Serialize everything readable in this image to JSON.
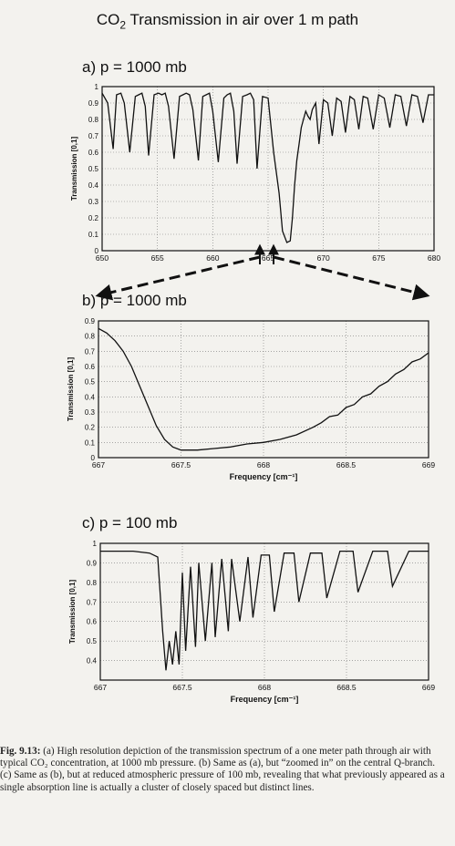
{
  "title_prefix": "CO",
  "title_sub": "2",
  "title_suffix": " Transmission in air over 1 m path",
  "caption": {
    "label": "Fig. 9.13:",
    "text": " (a) High resolution depiction of the transmission spectrum of a one meter path through air with typical CO₂ concentration, at 1000 mb pressure. (b) Same as (a), but “zoomed in” on the central Q-branch. (c) Same as (b), but at reduced atmospheric pressure of 100 mb, revealing that what previously appeared as a single absorption line is actually a cluster of closely spaced but distinct lines."
  },
  "chart_data": [
    {
      "type": "line",
      "panel_label": "a) p = 1000 mb",
      "xlabel": "",
      "ylabel": "Transmission [0,1]",
      "xlim": [
        650,
        680
      ],
      "ylim": [
        0,
        1
      ],
      "xticks": [
        650,
        655,
        660,
        665,
        670,
        675,
        680
      ],
      "xtick_labels": [
        "650",
        "655",
        "660",
        "665",
        "670",
        "675",
        "680"
      ],
      "yticks": [
        0,
        0.1,
        0.2,
        0.3,
        0.4,
        0.5,
        0.6,
        0.7,
        0.8,
        0.9,
        1
      ],
      "ytick_labels": [
        "0",
        "0.1",
        "0.2",
        "0.3",
        "0.4",
        "0.5",
        "0.6",
        "0.7",
        "0.8",
        "0.9",
        "1"
      ],
      "series": [
        {
          "x": [
            650,
            650.5,
            651,
            651.3,
            651.7,
            652,
            652.5,
            653,
            653.3,
            653.6,
            653.9,
            654.2,
            654.7,
            655.1,
            655.4,
            655.7,
            656,
            656.5,
            657,
            657.3,
            657.6,
            657.9,
            658.2,
            658.7,
            659.1,
            659.4,
            659.7,
            660,
            660.5,
            661,
            661.3,
            661.6,
            661.9,
            662.2,
            662.7,
            663.1,
            663.4,
            663.7,
            664,
            664.5,
            665,
            665.5,
            666,
            666.3,
            666.7,
            667,
            667.2,
            667.4,
            667.6,
            667.8,
            668,
            668.2,
            668.4,
            668.6,
            668.8,
            669,
            669.3,
            669.6,
            670,
            670.4,
            670.8,
            671.2,
            671.6,
            672,
            672.4,
            672.8,
            673.2,
            673.6,
            674,
            674.5,
            675,
            675.5,
            676,
            676.5,
            677,
            677.5,
            678,
            678.5,
            679,
            679.5,
            680
          ],
          "y": [
            0.96,
            0.9,
            0.62,
            0.95,
            0.96,
            0.9,
            0.6,
            0.94,
            0.95,
            0.96,
            0.88,
            0.58,
            0.95,
            0.96,
            0.95,
            0.96,
            0.88,
            0.56,
            0.94,
            0.95,
            0.96,
            0.95,
            0.86,
            0.55,
            0.94,
            0.95,
            0.96,
            0.85,
            0.54,
            0.93,
            0.95,
            0.96,
            0.85,
            0.53,
            0.94,
            0.95,
            0.96,
            0.92,
            0.5,
            0.94,
            0.93,
            0.6,
            0.35,
            0.12,
            0.05,
            0.06,
            0.2,
            0.4,
            0.55,
            0.65,
            0.75,
            0.8,
            0.85,
            0.82,
            0.8,
            0.86,
            0.9,
            0.65,
            0.92,
            0.9,
            0.7,
            0.93,
            0.91,
            0.72,
            0.94,
            0.92,
            0.74,
            0.94,
            0.93,
            0.74,
            0.95,
            0.93,
            0.75,
            0.95,
            0.94,
            0.76,
            0.95,
            0.94,
            0.78,
            0.95,
            0.95
          ]
        }
      ]
    },
    {
      "type": "line",
      "panel_label": "b) p = 1000 mb",
      "xlabel": "Frequency [cm⁻¹]",
      "ylabel": "Transmission [0,1]",
      "xlim": [
        667,
        669
      ],
      "ylim": [
        0,
        0.9
      ],
      "xticks": [
        667,
        667.5,
        668,
        668.5,
        669
      ],
      "xtick_labels": [
        "667",
        "667.5",
        "668",
        "668.5",
        "669"
      ],
      "yticks": [
        0,
        0.1,
        0.2,
        0.3,
        0.4,
        0.5,
        0.6,
        0.7,
        0.8,
        0.9
      ],
      "ytick_labels": [
        "0",
        "0.1",
        "0.2",
        "0.3",
        "0.4",
        "0.5",
        "0.6",
        "0.7",
        "0.8",
        "0.9"
      ],
      "series": [
        {
          "x": [
            667,
            667.05,
            667.1,
            667.15,
            667.2,
            667.25,
            667.3,
            667.35,
            667.4,
            667.45,
            667.5,
            667.6,
            667.7,
            667.8,
            667.9,
            668,
            668.1,
            668.2,
            668.3,
            668.35,
            668.4,
            668.45,
            668.5,
            668.55,
            668.6,
            668.65,
            668.7,
            668.75,
            668.8,
            668.85,
            668.9,
            668.95,
            669
          ],
          "y": [
            0.85,
            0.82,
            0.77,
            0.7,
            0.6,
            0.47,
            0.34,
            0.21,
            0.12,
            0.07,
            0.05,
            0.05,
            0.06,
            0.07,
            0.09,
            0.1,
            0.12,
            0.15,
            0.2,
            0.23,
            0.27,
            0.28,
            0.33,
            0.35,
            0.4,
            0.42,
            0.47,
            0.5,
            0.55,
            0.58,
            0.63,
            0.65,
            0.69
          ]
        }
      ]
    },
    {
      "type": "line",
      "panel_label": "c) p = 100 mb",
      "xlabel": "Frequency [cm⁻¹]",
      "ylabel": "Transmission [0,1]",
      "xlim": [
        667,
        669
      ],
      "ylim": [
        0.3,
        1
      ],
      "xticks": [
        667,
        667.5,
        668,
        668.5,
        669
      ],
      "xtick_labels": [
        "667",
        "667.5",
        "668",
        "668.5",
        "669"
      ],
      "yticks": [
        0.4,
        0.5,
        0.6,
        0.7,
        0.8,
        0.9,
        1
      ],
      "ytick_labels": [
        "0.4",
        "0.5",
        "0.6",
        "0.7",
        "0.8",
        "0.9",
        "1"
      ],
      "series": [
        {
          "x": [
            667,
            667.1,
            667.2,
            667.3,
            667.35,
            667.38,
            667.4,
            667.42,
            667.44,
            667.46,
            667.48,
            667.5,
            667.52,
            667.55,
            667.58,
            667.6,
            667.64,
            667.68,
            667.7,
            667.74,
            667.78,
            667.8,
            667.85,
            667.9,
            667.93,
            667.98,
            668.03,
            668.06,
            668.12,
            668.18,
            668.21,
            668.28,
            668.35,
            668.38,
            668.46,
            668.54,
            668.57,
            668.66,
            668.75,
            668.78,
            668.88,
            669
          ],
          "y": [
            0.96,
            0.96,
            0.96,
            0.95,
            0.93,
            0.55,
            0.35,
            0.5,
            0.38,
            0.55,
            0.38,
            0.85,
            0.45,
            0.88,
            0.47,
            0.9,
            0.5,
            0.9,
            0.52,
            0.92,
            0.55,
            0.92,
            0.6,
            0.93,
            0.62,
            0.94,
            0.94,
            0.65,
            0.95,
            0.95,
            0.7,
            0.95,
            0.95,
            0.72,
            0.96,
            0.96,
            0.75,
            0.96,
            0.96,
            0.78,
            0.96,
            0.96
          ]
        }
      ]
    }
  ]
}
